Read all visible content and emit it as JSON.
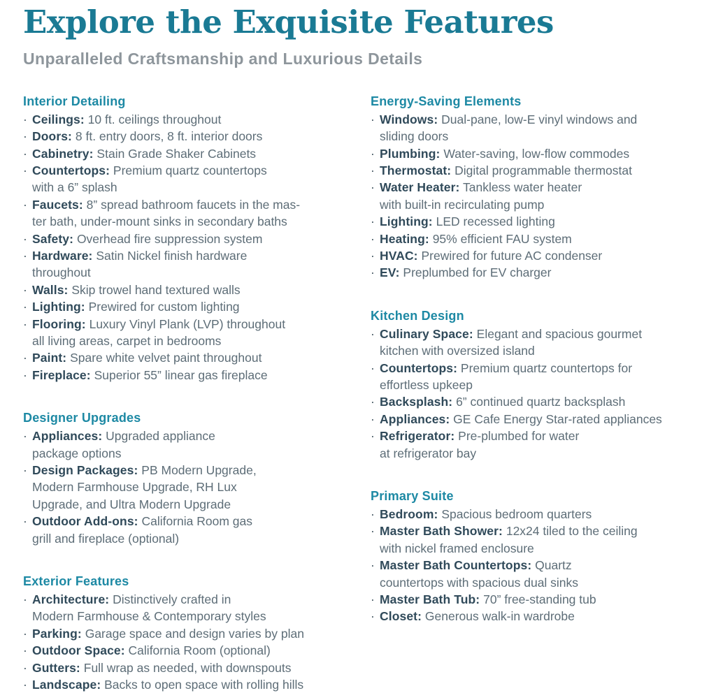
{
  "page": {
    "title": "Explore the Exquisite Features",
    "subtitle": "Unparalleled Craftsmanship and Luxurious Details"
  },
  "ui": {
    "bullet": "·"
  },
  "colors": {
    "title": "#1a7a94",
    "subtitle": "#8e969c",
    "section_heading": "#1d89a4",
    "item_label": "#304a5a",
    "body_text": "#5d6d77",
    "bullet": "#41545f",
    "background": "#ffffff"
  },
  "columns": [
    {
      "sections": [
        {
          "heading": "Interior Detailing",
          "items": [
            {
              "label": "Ceilings:",
              "text": "10 ft. ceilings throughout"
            },
            {
              "label": "Doors:",
              "text": "8 ft. entry doors, 8 ft. interior doors"
            },
            {
              "label": "Cabinetry:",
              "text": "Stain Grade Shaker Cabinets"
            },
            {
              "label": "Countertops:",
              "text": "Premium quartz countertops\nwith a 6” splash"
            },
            {
              "label": "Faucets:",
              "text": "8” spread bathroom faucets in the mas-\nter bath, under-mount sinks in secondary baths"
            },
            {
              "label": "Safety:",
              "text": "Overhead fire suppression system"
            },
            {
              "label": "Hardware:",
              "text": "Satin Nickel finish hardware\nthroughout"
            },
            {
              "label": "Walls:",
              "text": "Skip trowel hand textured walls"
            },
            {
              "label": "Lighting:",
              "text": "Prewired for custom lighting"
            },
            {
              "label": "Flooring:",
              "text": "Luxury Vinyl Plank (LVP) throughout\nall living areas, carpet in bedrooms"
            },
            {
              "label": "Paint:",
              "text": "Spare white velvet paint throughout"
            },
            {
              "label": "Fireplace:",
              "text": "Superior 55” linear gas fireplace"
            }
          ]
        },
        {
          "heading": "Designer Upgrades",
          "items": [
            {
              "label": "Appliances:",
              "text": "Upgraded appliance\npackage options"
            },
            {
              "label": "Design Packages:",
              "text": "PB Modern Upgrade,\nModern Farmhouse Upgrade, RH Lux\nUpgrade, and Ultra Modern Upgrade"
            },
            {
              "label": "Outdoor Add-ons:",
              "text": "California Room gas\ngrill and fireplace (optional)"
            }
          ]
        },
        {
          "heading": "Exterior Features",
          "items": [
            {
              "label": "Architecture:",
              "text": "Distinctively crafted in\nModern Farmhouse & Contemporary styles"
            },
            {
              "label": "Parking:",
              "text": "Garage space and design varies by plan"
            },
            {
              "label": "Outdoor Space:",
              "text": "California Room (optional)"
            },
            {
              "label": "Gutters:",
              "text": "Full wrap as needed, with downspouts"
            },
            {
              "label": "Landscape:",
              "text": "Backs to open space with rolling hills"
            }
          ]
        }
      ]
    },
    {
      "sections": [
        {
          "heading": "Energy-Saving Elements",
          "items": [
            {
              "label": "Windows:",
              "text": "Dual-pane, low-E vinyl windows and\nsliding doors"
            },
            {
              "label": "Plumbing:",
              "text": "Water-saving, low-flow commodes"
            },
            {
              "label": "Thermostat:",
              "text": "Digital programmable thermostat"
            },
            {
              "label": "Water Heater:",
              "text": "Tankless water heater\nwith built-in recirculating pump"
            },
            {
              "label": "Lighting:",
              "text": "LED recessed lighting"
            },
            {
              "label": "Heating:",
              "text": "95% efficient FAU system"
            },
            {
              "label": "HVAC:",
              "text": "Prewired for future AC condenser"
            },
            {
              "label": "EV:",
              "text": "Preplumbed for EV charger"
            }
          ]
        },
        {
          "heading": "Kitchen Design",
          "items": [
            {
              "label": "Culinary Space:",
              "text": "Elegant and spacious gourmet\nkitchen with oversized island"
            },
            {
              "label": "Countertops:",
              "text": "Premium quartz countertops for\neffortless upkeep"
            },
            {
              "label": "Backsplash:",
              "text": "6” continued quartz backsplash"
            },
            {
              "label": "Appliances:",
              "text": "GE Cafe Energy Star-rated appliances"
            },
            {
              "label": "Refrigerator:",
              "text": "Pre-plumbed for water\nat refrigerator bay"
            }
          ]
        },
        {
          "heading": "Primary Suite",
          "items": [
            {
              "label": "Bedroom:",
              "text": "Spacious bedroom quarters"
            },
            {
              "label": "Master Bath Shower:",
              "text": "12x24 tiled to the ceiling\nwith nickel framed enclosure"
            },
            {
              "label": "Master Bath Countertops:",
              "text": "Quartz\ncountertops with spacious dual sinks"
            },
            {
              "label": "Master Bath Tub:",
              "text": "70” free-standing tub"
            },
            {
              "label": "Closet:",
              "text": "Generous walk-in wardrobe"
            }
          ]
        }
      ]
    }
  ]
}
